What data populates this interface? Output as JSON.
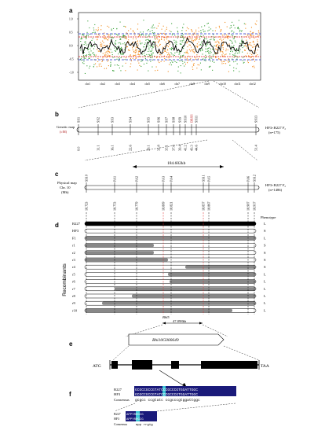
{
  "panel_labels": {
    "a": "a",
    "b": "b",
    "c": "c",
    "d": "d",
    "e": "e",
    "f": "f"
  },
  "panel_a": {
    "y_ticks": [
      "1.0",
      "0.5",
      "0.0",
      "-0.5",
      "-1.0"
    ],
    "chromosomes": [
      "chr1",
      "chr2",
      "chr3",
      "chr4",
      "chr5",
      "chr6",
      "chr7",
      "chr8",
      "chr9",
      "chr10",
      "chr11",
      "chr12"
    ],
    "colors": {
      "orange": "#f28a1a",
      "green": "#3aa23a",
      "black": "#000000",
      "red": "#e02020",
      "blue": "#2030d0"
    }
  },
  "panel_b": {
    "axis_label": "Genetic map (cM)",
    "side_label": "HF3×B227 F₂ (n=175)",
    "markers": [
      "SS1",
      "SS2",
      "SS3",
      "SS4",
      "SS5",
      "SS6",
      "SS7",
      "SS8",
      "SS9",
      "SS10",
      "BRSS",
      "SS11",
      "SS13"
    ],
    "positions": [
      "0.0",
      "11.1",
      "16.1",
      "22.6",
      "29.1",
      "32.8",
      "35.1",
      "37.6",
      "39.4",
      "41.2",
      "43.3",
      "44.6",
      "51.4"
    ]
  },
  "panel_c": {
    "axis_label": "Physical map Chr. 10 (Mb)",
    "side_label": "HF3×B227 F₂ (n=1486)",
    "interval": "184.602kb",
    "markers": [
      "SS10",
      "PA1",
      "PA2",
      "PA3",
      "PA4",
      "SS11",
      "PA5",
      "PA6",
      "SS12"
    ],
    "positions": [
      "18.723",
      "18.753",
      "18.779",
      "18.809",
      "18.821",
      "18.857",
      "18.867",
      "18.907",
      "18.917"
    ]
  },
  "panel_d": {
    "phenotype_header": "Phenotype",
    "recombinants_label": "Recombinants",
    "rows": [
      {
        "name": "B227",
        "pheno": "L"
      },
      {
        "name": "HF3",
        "pheno": "S"
      },
      {
        "name": "F1",
        "pheno": "L"
      },
      {
        "name": "r1",
        "pheno": "S"
      },
      {
        "name": "r2",
        "pheno": "S"
      },
      {
        "name": "r3",
        "pheno": "S"
      },
      {
        "name": "r4",
        "pheno": "S"
      },
      {
        "name": "r5",
        "pheno": "L"
      },
      {
        "name": "r6",
        "pheno": "L"
      },
      {
        "name": "r7",
        "pheno": "L"
      },
      {
        "name": "r8",
        "pheno": "L"
      },
      {
        "name": "r9",
        "pheno": "L"
      },
      {
        "name": "r10",
        "pheno": "L"
      }
    ],
    "gene_locus": "Bhl5",
    "gene_interval": "47.098kb"
  },
  "panel_e": {
    "gene_name": "Bhi10G000649",
    "start_codon": "ATG",
    "stop_codon": "TAA"
  },
  "panel_f": {
    "dna": [
      {
        "name": "B227",
        "seq": "GCGCCGCCGTATCCCGCCCGTGGATTGGC"
      },
      {
        "name": "HF3",
        "seq": "GCGCCGCCGTATCCCGCCCGTGGATTGGC"
      },
      {
        "name": "Consensus",
        "seq": "gcgcc ccgtatc ccgcccgtggattggc"
      }
    ],
    "protein": [
      {
        "name": "B227",
        "seq": "APPYRRGIG"
      },
      {
        "name": "HF3",
        "seq": "APPYRRGIG"
      },
      {
        "name": "Consensus",
        "seq": "app rrgig"
      }
    ]
  }
}
